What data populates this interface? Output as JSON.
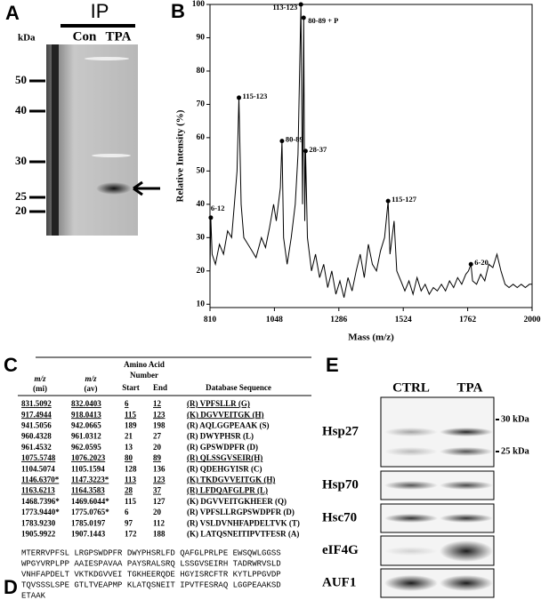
{
  "panel_a": {
    "letter": "A",
    "label": "IP",
    "lanes": [
      "Con",
      "TPA"
    ],
    "unit": "kDa",
    "markers": [
      "50",
      "40",
      "30",
      "25",
      "20"
    ]
  },
  "panel_b": {
    "letter": "B"
  },
  "chart_data": {
    "type": "line",
    "xlabel": "Mass (m/z)",
    "ylabel": "Relative Intensity (%)",
    "color": "#000000",
    "xlim": [
      810,
      2000
    ],
    "xticks": [
      810,
      1048,
      1286,
      1524,
      1762,
      2000
    ],
    "ylim": [
      9,
      100
    ],
    "yticks": [
      10,
      20,
      30,
      40,
      50,
      60,
      70,
      80,
      90,
      100
    ],
    "x": [
      810,
      813,
      818,
      830,
      845,
      860,
      875,
      890,
      900,
      910,
      917,
      925,
      935,
      950,
      965,
      980,
      1000,
      1015,
      1030,
      1045,
      1055,
      1070,
      1076,
      1082,
      1095,
      1110,
      1125,
      1135,
      1146,
      1152,
      1156,
      1160,
      1163,
      1170,
      1185,
      1200,
      1215,
      1230,
      1245,
      1260,
      1275,
      1290,
      1305,
      1320,
      1335,
      1350,
      1365,
      1380,
      1395,
      1410,
      1425,
      1440,
      1455,
      1468,
      1475,
      1490,
      1500,
      1515,
      1530,
      1545,
      1560,
      1575,
      1590,
      1605,
      1620,
      1635,
      1650,
      1665,
      1680,
      1695,
      1710,
      1725,
      1740,
      1755,
      1765,
      1774,
      1780,
      1795,
      1810,
      1825,
      1840,
      1855,
      1870,
      1885,
      1900,
      1915,
      1930,
      1945,
      1960,
      1975,
      1990,
      2000
    ],
    "values": [
      20,
      36,
      25,
      22,
      28,
      25,
      32,
      30,
      40,
      50,
      72,
      40,
      30,
      28,
      26,
      24,
      30,
      27,
      33,
      40,
      35,
      45,
      59,
      30,
      22,
      30,
      40,
      55,
      100,
      40,
      96,
      35,
      56,
      30,
      20,
      25,
      18,
      22,
      15,
      20,
      13,
      17,
      12,
      18,
      14,
      20,
      25,
      18,
      28,
      22,
      20,
      26,
      30,
      41,
      25,
      35,
      20,
      17,
      14,
      17,
      13,
      18,
      14,
      16,
      13,
      15,
      14,
      16,
      14,
      17,
      15,
      18,
      16,
      19,
      20,
      22,
      17,
      16,
      19,
      17,
      22,
      21,
      25,
      20,
      16,
      15,
      16,
      15,
      16,
      15,
      16,
      16
    ],
    "annotations": [
      {
        "x": 813,
        "y": 36,
        "label": "6-12"
      },
      {
        "x": 917,
        "y": 72,
        "label": "115-123"
      },
      {
        "x": 1076,
        "y": 59,
        "label": "80-89"
      },
      {
        "x": 1146,
        "y": 100,
        "label": "113-123"
      },
      {
        "x": 1156,
        "y": 96,
        "label": "80-89 + P"
      },
      {
        "x": 1163,
        "y": 56,
        "label": "28-37"
      },
      {
        "x": 1468,
        "y": 41,
        "label": "115-127"
      },
      {
        "x": 1774,
        "y": 22,
        "label": "6-20"
      }
    ]
  },
  "panel_c": {
    "letter": "C",
    "headers": {
      "mi": [
        "m/z",
        "(mi)"
      ],
      "av": [
        "m/z",
        "(av)"
      ],
      "group": [
        "Amino Acid",
        "Number"
      ],
      "start": "Start",
      "end": "End",
      "sequence": "Database Sequence"
    },
    "rows": [
      [
        "831.5092",
        "832.0403",
        "6",
        "12",
        "(R) VPFSLLR (G)"
      ],
      [
        "917.4944",
        "918.0413",
        "115",
        "123",
        "(K) DGVVEITGK (H)"
      ],
      [
        "941.5056",
        "942.0665",
        "189",
        "198",
        "(R) AQLGGPEAAK (S)"
      ],
      [
        "960.4328",
        "961.0312",
        "21",
        "27",
        "(R) DWYPHSR (L)"
      ],
      [
        "961.4532",
        "962.0595",
        "13",
        "20",
        "(R) GPSWDPFR (D)"
      ],
      [
        "1075.5748",
        "1076.2023",
        "80",
        "89",
        "(R) QLSSGVSEIR(H)"
      ],
      [
        "1104.5074",
        "1105.1594",
        "128",
        "136",
        "(R) QDEHGYISR (C)"
      ],
      [
        "1146.6370*",
        "1147.3223*",
        "113",
        "123",
        "(K) TKDGVVEITGK (H)"
      ],
      [
        "1163.6213",
        "1164.3583",
        "28",
        "37",
        "(R) LFDQAFGLPR (L)"
      ],
      [
        "1468.7396*",
        "1469.6044*",
        "115",
        "127",
        "(K) DGVVEITGKHEER (Q)"
      ],
      [
        "1773.9440*",
        "1775.0765*",
        "6",
        "20",
        "(R) VPFSLLRGPSWDPFR (D)"
      ],
      [
        "1783.9230",
        "1785.0197",
        "97",
        "112",
        "(R) VSLDVNHFAPDELTVK (T)"
      ],
      [
        "1905.9922",
        "1907.1443",
        "172",
        "188",
        "(K) LATQSNEITIPVTFESR (A)"
      ]
    ],
    "underlined_rows": [
      0,
      1,
      5,
      7,
      8
    ]
  },
  "panel_d": {
    "letter": "D",
    "lines": [
      "MTERRVPFSL LRGPSWDPFR DWYPHSRLFD QAFGLPRLPE EWSQWLGGSS",
      "WPGYVRPLPP AAIESPAVAA PAYSRALSRQ LSSGVSEIRH TADRWRVSLD",
      "VNHFAPDELT VKTKDGVVEI TGKHEERQDE HGYISRCFTR KYTLPPGVDP",
      "TQVSSSLSPE GTLTVEAPMP KLATQSNEIT IPVTFESRAQ LGGPEAAKSD",
      "ETAAK"
    ]
  },
  "panel_e": {
    "letter": "E",
    "columns": [
      "CTRL",
      "TPA"
    ],
    "rows": [
      "Hsp27",
      "Hsp70",
      "Hsc70",
      "eIF4G",
      "AUF1"
    ],
    "markers": [
      "30 kDa",
      "25 kDa"
    ]
  }
}
